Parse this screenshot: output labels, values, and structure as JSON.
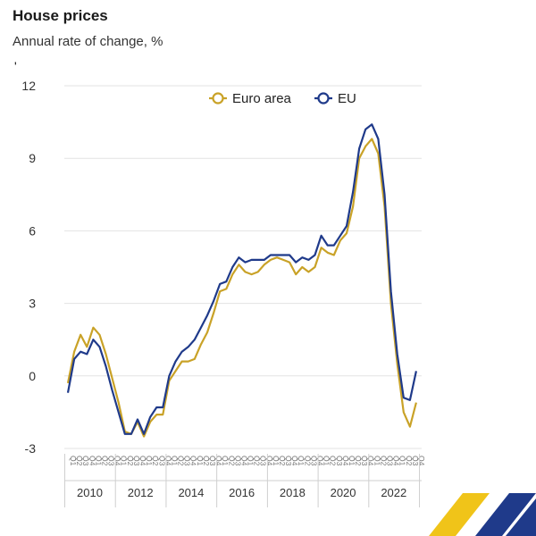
{
  "title": "House prices",
  "subtitle": "Annual rate of change, %",
  "stray_mark": "'",
  "colors": {
    "euro_area": "#c9a227",
    "eu": "#1f3a8a",
    "grid": "#e3e3e3",
    "axis_text": "#333333"
  },
  "chart_data": {
    "type": "line",
    "title": "House prices",
    "subtitle": "Annual rate of change, %",
    "ylim": [
      -3,
      12
    ],
    "yticks": [
      -3,
      0,
      3,
      6,
      9,
      12
    ],
    "grid": true,
    "legend_position": "top-center",
    "quarter_labels": [
      "Q1",
      "Q2",
      "Q3",
      "Q4"
    ],
    "year_labels": [
      "2010",
      "2012",
      "2014",
      "2016",
      "2018",
      "2020",
      "2022"
    ],
    "x": [
      "2010Q1",
      "2010Q2",
      "2010Q3",
      "2010Q4",
      "2011Q1",
      "2011Q2",
      "2011Q3",
      "2011Q4",
      "2012Q1",
      "2012Q2",
      "2012Q3",
      "2012Q4",
      "2013Q1",
      "2013Q2",
      "2013Q3",
      "2013Q4",
      "2014Q1",
      "2014Q2",
      "2014Q3",
      "2014Q4",
      "2015Q1",
      "2015Q2",
      "2015Q3",
      "2015Q4",
      "2016Q1",
      "2016Q2",
      "2016Q3",
      "2016Q4",
      "2017Q1",
      "2017Q2",
      "2017Q3",
      "2017Q4",
      "2018Q1",
      "2018Q2",
      "2018Q3",
      "2018Q4",
      "2019Q1",
      "2019Q2",
      "2019Q3",
      "2019Q4",
      "2020Q1",
      "2020Q2",
      "2020Q3",
      "2020Q4",
      "2021Q1",
      "2021Q2",
      "2021Q3",
      "2021Q4",
      "2022Q1",
      "2022Q2",
      "2022Q3",
      "2022Q4",
      "2023Q1",
      "2023Q2",
      "2023Q3",
      "2023Q4"
    ],
    "series": [
      {
        "name": "Euro area",
        "color": "#c9a227",
        "values": [
          -0.3,
          1.0,
          1.7,
          1.2,
          2.0,
          1.7,
          0.9,
          -0.1,
          -1.1,
          -2.3,
          -2.4,
          -1.9,
          -2.5,
          -1.9,
          -1.6,
          -1.6,
          -0.2,
          0.2,
          0.6,
          0.6,
          0.7,
          1.3,
          1.8,
          2.6,
          3.5,
          3.6,
          4.2,
          4.6,
          4.3,
          4.2,
          4.3,
          4.6,
          4.8,
          4.9,
          4.8,
          4.7,
          4.2,
          4.5,
          4.3,
          4.5,
          5.3,
          5.1,
          5.0,
          5.6,
          5.9,
          7.0,
          9.0,
          9.5,
          9.8,
          9.2,
          7.0,
          3.0,
          0.5,
          -1.5,
          -2.1,
          -1.1
        ]
      },
      {
        "name": "EU",
        "color": "#1f3a8a",
        "values": [
          -0.7,
          0.7,
          1.0,
          0.9,
          1.5,
          1.2,
          0.4,
          -0.6,
          -1.5,
          -2.4,
          -2.4,
          -1.8,
          -2.4,
          -1.7,
          -1.3,
          -1.3,
          0.0,
          0.6,
          1.0,
          1.2,
          1.5,
          2.0,
          2.5,
          3.1,
          3.8,
          3.9,
          4.5,
          4.9,
          4.7,
          4.8,
          4.8,
          4.8,
          5.0,
          5.0,
          5.0,
          5.0,
          4.7,
          4.9,
          4.8,
          5.0,
          5.8,
          5.4,
          5.4,
          5.8,
          6.2,
          7.6,
          9.4,
          10.2,
          10.4,
          9.8,
          7.5,
          3.5,
          0.9,
          -0.9,
          -1.0,
          0.2
        ]
      }
    ]
  }
}
